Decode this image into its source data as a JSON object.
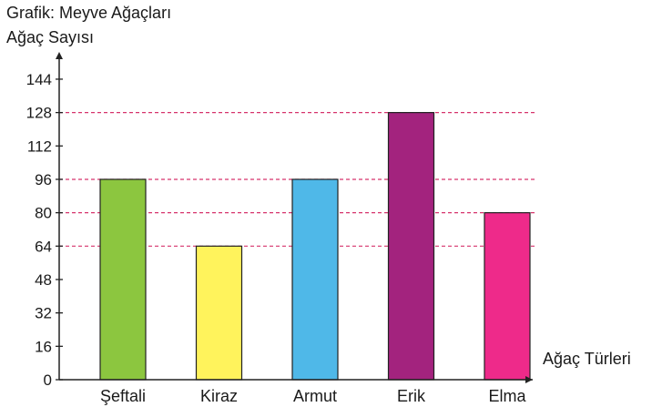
{
  "chart_data": {
    "type": "bar",
    "title": "Grafik: Meyve Ağaçları",
    "ylabel": "Ağaç Sayısı",
    "xlabel": "Ağaç Türleri",
    "categories": [
      "Şeftali",
      "Kiraz",
      "Armut",
      "Erik",
      "Elma"
    ],
    "values": [
      96,
      64,
      96,
      128,
      80
    ],
    "colors": [
      "#8cc63f",
      "#fff35c",
      "#4fb8e8",
      "#a3237e",
      "#ee2a8a"
    ],
    "ylim": [
      0,
      144
    ],
    "yticks": [
      0,
      16,
      32,
      48,
      64,
      80,
      96,
      112,
      128,
      144
    ],
    "reference_line_color": "#d6336c",
    "grid": false
  }
}
